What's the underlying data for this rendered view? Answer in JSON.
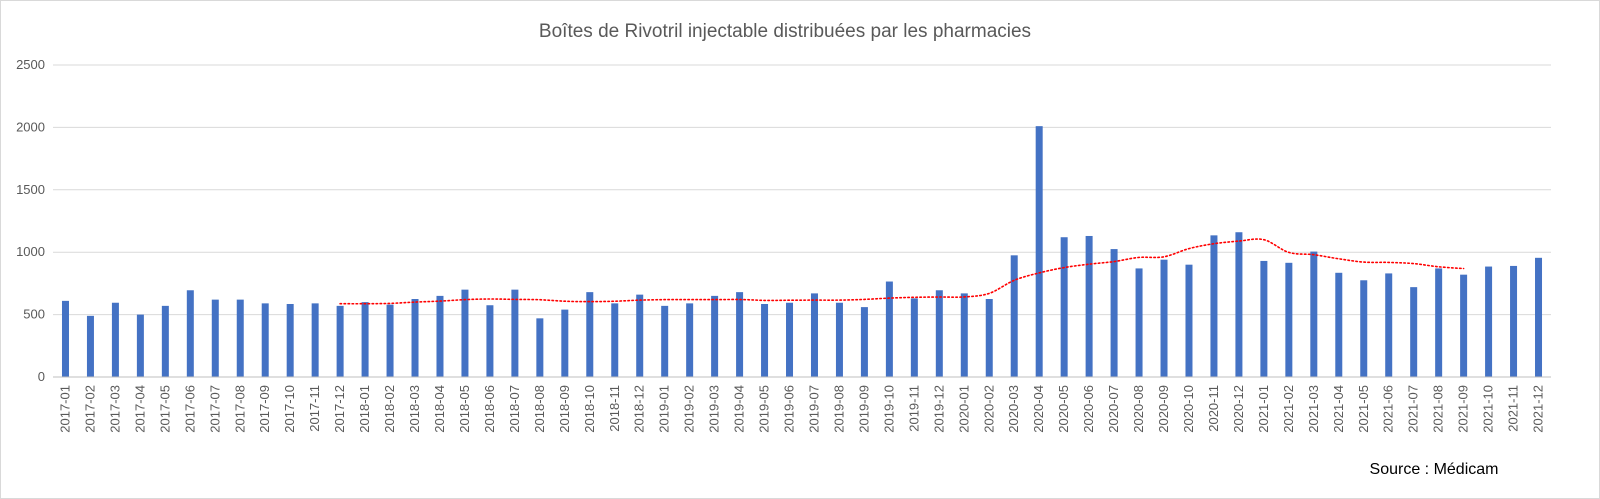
{
  "chart_data": {
    "type": "bar",
    "title": "Boîtes de Rivotril injectable distribuées par les pharmacies",
    "source": "Source : Médicam",
    "ylim": [
      0,
      2500
    ],
    "yticks": [
      0,
      500,
      1000,
      1500,
      2000,
      2500
    ],
    "grid": true,
    "colors": {
      "bar": "#4472C4",
      "trend": "#FF0000",
      "grid": "#d9d9d9"
    },
    "categories": [
      "2017-01",
      "2017-02",
      "2017-03",
      "2017-04",
      "2017-05",
      "2017-06",
      "2017-07",
      "2017-08",
      "2017-09",
      "2017-10",
      "2017-11",
      "2017-12",
      "2018-01",
      "2018-02",
      "2018-03",
      "2018-04",
      "2018-05",
      "2018-06",
      "2018-07",
      "2018-08",
      "2018-09",
      "2018-10",
      "2018-11",
      "2018-12",
      "2019-01",
      "2019-02",
      "2019-03",
      "2019-04",
      "2019-05",
      "2019-06",
      "2019-07",
      "2019-08",
      "2019-09",
      "2019-10",
      "2019-11",
      "2019-12",
      "2020-01",
      "2020-02",
      "2020-03",
      "2020-04",
      "2020-05",
      "2020-06",
      "2020-07",
      "2020-08",
      "2020-09",
      "2020-10",
      "2020-11",
      "2020-12",
      "2021-01",
      "2021-02",
      "2021-03",
      "2021-04",
      "2021-05",
      "2021-06",
      "2021-07",
      "2021-08",
      "2021-09",
      "2021-10",
      "2021-11",
      "2021-12"
    ],
    "values": [
      610,
      490,
      595,
      500,
      570,
      695,
      620,
      620,
      590,
      585,
      590,
      570,
      600,
      580,
      625,
      650,
      700,
      575,
      700,
      470,
      540,
      680,
      590,
      660,
      570,
      590,
      650,
      680,
      585,
      595,
      670,
      595,
      560,
      765,
      630,
      695,
      670,
      625,
      975,
      2010,
      1120,
      1130,
      1025,
      870,
      940,
      900,
      1135,
      1160,
      930,
      915,
      1005,
      835,
      775,
      830,
      720,
      870,
      820,
      885,
      890,
      955
    ],
    "trend": {
      "start_index": 11,
      "values": [
        587,
        587,
        590,
        600,
        608,
        620,
        625,
        622,
        619,
        607,
        604,
        607,
        616,
        620,
        620,
        620,
        621,
        614,
        615,
        616,
        616,
        622,
        632,
        639,
        641,
        642,
        670,
        775,
        834,
        877,
        904,
        925,
        958,
        963,
        1029,
        1068,
        1089,
        1100,
        998,
        980,
        947,
        921,
        918,
        909,
        883,
        869
      ]
    }
  }
}
